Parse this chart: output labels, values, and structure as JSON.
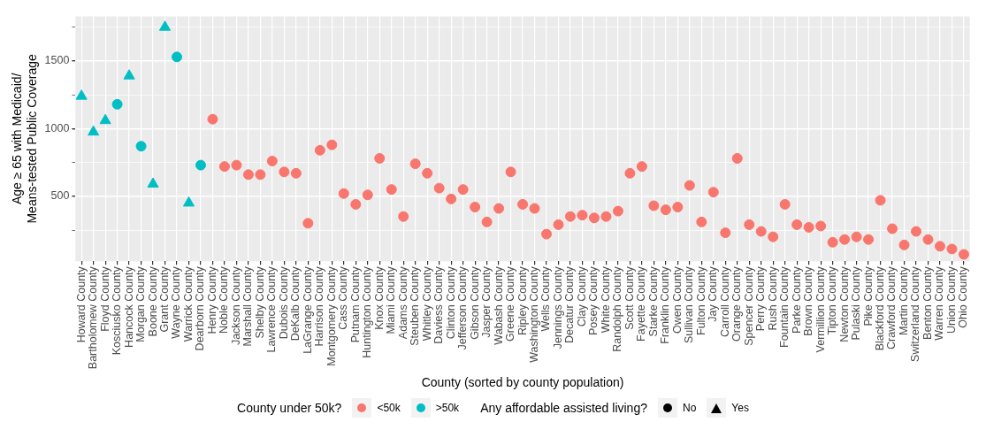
{
  "chart_data": {
    "type": "scatter",
    "xlabel": "County (sorted by county population)",
    "ylabel": "Age ≥ 65 with Medicaid/\nMeans-tested Public Coverage",
    "legend_title": "County under 50k?",
    "legend": "bottom",
    "grid": true,
    "categories": [
      "Howard County",
      "Bartholomew County",
      "Floyd County",
      "Kosciusko County",
      "Hancock County",
      "Morgan County",
      "Boone County",
      "Grant County",
      "Wayne County",
      "Warrick County",
      "Dearborn County",
      "Henry County",
      "Noble County",
      "Jackson County",
      "Marshall County",
      "Shelby County",
      "Lawrence County",
      "Dubois County",
      "DeKalb County",
      "LaGrange County",
      "Harrison County",
      "Montgomery County",
      "Cass County",
      "Putnam County",
      "Huntington County",
      "Knox County",
      "Miami County",
      "Adams County",
      "Steuben County",
      "Whitley County",
      "Daviess County",
      "Clinton County",
      "Jefferson County",
      "Gibson County",
      "Jasper County",
      "Wabash County",
      "Greene County",
      "Ripley County",
      "Washington County",
      "Wells County",
      "Jennings County",
      "Decatur County",
      "Clay County",
      "Posey County",
      "White County",
      "Randolph County",
      "Scott County",
      "Fayette County",
      "Starke County",
      "Franklin County",
      "Owen County",
      "Sullivan County",
      "Fulton County",
      "Jay County",
      "Carroll County",
      "Orange County",
      "Spencer County",
      "Perry County",
      "Rush County",
      "Fountain County",
      "Parke County",
      "Brown County",
      "Vermillion County",
      "Tipton County",
      "Newton County",
      "Pulaski County",
      "Pike County",
      "Blackford County",
      "Crawford County",
      "Martin County",
      "Switzerland County",
      "Benton County",
      "Warren County",
      "Union County",
      "Ohio County"
    ],
    "ylim": [
      20,
      1830
    ],
    "yticks": [
      {
        "value": 250,
        "label": null
      },
      500,
      {
        "value": 750,
        "label": null
      },
      1000,
      {
        "value": 1250,
        "label": null
      },
      1500,
      {
        "value": 1750,
        "label": null
      }
    ],
    "series": [
      {
        "name": "<50k",
        "color": "#f8766d",
        "marker": "circle",
        "values": [
          null,
          null,
          null,
          null,
          null,
          null,
          null,
          null,
          null,
          null,
          null,
          1070,
          720,
          730,
          660,
          660,
          760,
          680,
          670,
          300,
          840,
          880,
          520,
          440,
          510,
          780,
          550,
          350,
          740,
          670,
          560,
          480,
          550,
          420,
          310,
          410,
          680,
          440,
          410,
          220,
          290,
          350,
          360,
          340,
          350,
          390,
          670,
          720,
          430,
          400,
          420,
          580,
          310,
          530,
          230,
          780,
          290,
          240,
          200,
          440,
          290,
          270,
          280,
          160,
          180,
          200,
          180,
          470,
          260,
          140,
          240,
          180,
          130,
          110,
          70
        ]
      },
      {
        "name": ">50k",
        "color": "#00bfc4",
        "marker": "circle",
        "values": [
          null,
          null,
          null,
          1180,
          null,
          870,
          null,
          null,
          1530,
          null,
          730,
          null,
          null,
          null,
          null,
          null,
          null,
          null,
          null,
          null,
          null,
          null,
          null,
          null,
          null,
          null,
          null,
          null,
          null,
          null,
          null,
          null,
          null,
          null,
          null,
          null,
          null,
          null,
          null,
          null,
          null,
          null,
          null,
          null,
          null,
          null,
          null,
          null,
          null,
          null,
          null,
          null,
          null,
          null,
          null,
          null,
          null,
          null,
          null,
          null,
          null,
          null,
          null,
          null,
          null,
          null,
          null,
          null,
          null,
          null,
          null,
          null,
          null,
          null,
          null
        ]
      },
      {
        "color": "#00bfc4",
        "marker": "triangle",
        "values": [
          1240,
          975,
          1060,
          null,
          1390,
          null,
          590,
          1750,
          null,
          450,
          null,
          null,
          null,
          null,
          null,
          null,
          null,
          null,
          null,
          null,
          null,
          null,
          null,
          null,
          null,
          null,
          null,
          null,
          null,
          null,
          null,
          null,
          null,
          null,
          null,
          null,
          null,
          null,
          null,
          null,
          null,
          null,
          null,
          null,
          null,
          null,
          null,
          null,
          null,
          null,
          null,
          null,
          null,
          null,
          null,
          null,
          null,
          null,
          null,
          null,
          null,
          null,
          null,
          null,
          null,
          null,
          null,
          null,
          null,
          null,
          null,
          null,
          null,
          null,
          null
        ]
      }
    ],
    "annotations": [
      "Any affordable assisted living?",
      "No",
      "Yes"
    ]
  }
}
